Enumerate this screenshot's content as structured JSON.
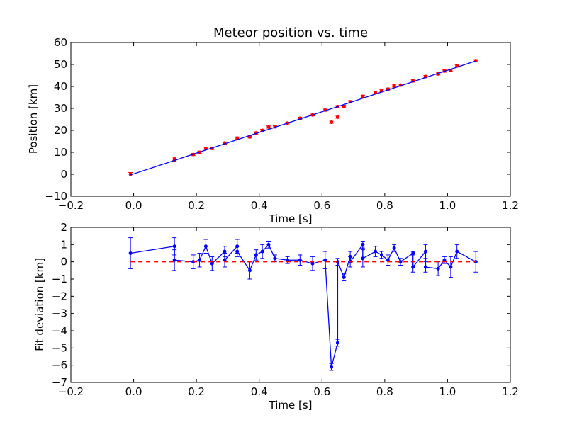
{
  "chart_data": [
    {
      "type": "scatter",
      "title": "Meteor position vs. time",
      "xlabel": "Time [s]",
      "ylabel": "Position [km]",
      "xlim": [
        -0.2,
        1.2
      ],
      "ylim": [
        -10,
        60
      ],
      "xticks": [
        -0.2,
        0.0,
        0.2,
        0.4,
        0.6,
        0.8,
        1.0,
        1.2
      ],
      "xtick_labels": [
        "−0.2",
        "0.0",
        "0.2",
        "0.4",
        "0.6",
        "0.8",
        "1.0",
        "1.2"
      ],
      "yticks": [
        -10,
        0,
        10,
        20,
        30,
        40,
        50,
        60
      ],
      "ytick_labels": [
        "−10",
        "0",
        "10",
        "20",
        "30",
        "40",
        "50",
        "60"
      ],
      "grid": false,
      "series": [
        {
          "kind": "errorbar-points",
          "color": "#ff0000",
          "x": [
            -0.01,
            0.13,
            0.13,
            0.19,
            0.21,
            0.23,
            0.25,
            0.29,
            0.33,
            0.37,
            0.39,
            0.41,
            0.43,
            0.45,
            0.49,
            0.53,
            0.57,
            0.61,
            0.63,
            0.65,
            0.65,
            0.67,
            0.69,
            0.73,
            0.77,
            0.79,
            0.81,
            0.83,
            0.85,
            0.89,
            0.93,
            0.97,
            0.99,
            1.01,
            1.03,
            1.09
          ],
          "y": [
            0.0,
            7.0,
            6.3,
            9.0,
            10.0,
            11.8,
            11.8,
            14.2,
            16.5,
            17.0,
            18.8,
            20.0,
            21.5,
            21.6,
            23.3,
            25.5,
            27.0,
            29.2,
            23.7,
            26.0,
            30.8,
            30.9,
            33.0,
            35.5,
            37.3,
            38.0,
            38.8,
            40.2,
            40.6,
            42.5,
            44.5,
            45.7,
            47.0,
            47.3,
            49.3,
            51.7
          ],
          "yerr": [
            0.8,
            0.8,
            0.6,
            0.5,
            0.5,
            0.5,
            0.5,
            0.5,
            0.5,
            0.5,
            0.5,
            0.5,
            0.5,
            0.5,
            0.4,
            0.5,
            0.4,
            0.5,
            0.5,
            0.5,
            0.5,
            0.5,
            0.5,
            0.5,
            0.5,
            0.5,
            0.5,
            0.5,
            0.5,
            0.5,
            0.5,
            0.5,
            0.5,
            0.5,
            0.5,
            0.5
          ]
        },
        {
          "kind": "fit-line",
          "color": "#0000ff",
          "x": [
            -0.01,
            1.09
          ],
          "y": [
            -0.3,
            51.6
          ]
        }
      ]
    },
    {
      "type": "line",
      "xlabel": "Time [s]",
      "ylabel": "Fit deviation [km]",
      "xlim": [
        -0.2,
        1.2
      ],
      "ylim": [
        -7,
        2
      ],
      "xticks": [
        -0.2,
        0.0,
        0.2,
        0.4,
        0.6,
        0.8,
        1.0,
        1.2
      ],
      "xtick_labels": [
        "−0.2",
        "0.0",
        "0.2",
        "0.4",
        "0.6",
        "0.8",
        "1.0",
        "1.2"
      ],
      "yticks": [
        -7,
        -6,
        -5,
        -4,
        -3,
        -2,
        -1,
        0,
        1,
        2
      ],
      "ytick_labels": [
        "−7",
        "−6",
        "−5",
        "−4",
        "−3",
        "−2",
        "−1",
        "0",
        "1",
        "2"
      ],
      "grid": false,
      "series": [
        {
          "kind": "errorbar-line",
          "color": "#0000ff",
          "x": [
            -0.01,
            0.13,
            0.13,
            0.19,
            0.21,
            0.23,
            0.25,
            0.29,
            0.29,
            0.33,
            0.33,
            0.37,
            0.39,
            0.41,
            0.43,
            0.45,
            0.49,
            0.53,
            0.57,
            0.61,
            0.63,
            0.65,
            0.65,
            0.67,
            0.69,
            0.69,
            0.73,
            0.73,
            0.77,
            0.79,
            0.81,
            0.83,
            0.85,
            0.89,
            0.89,
            0.93,
            0.93,
            0.97,
            0.99,
            1.01,
            1.03,
            1.09
          ],
          "y": [
            0.5,
            0.9,
            0.1,
            0.0,
            0.1,
            0.9,
            -0.1,
            0.6,
            0.1,
            0.9,
            0.6,
            -0.5,
            0.4,
            0.6,
            1.0,
            0.2,
            0.1,
            0.1,
            -0.1,
            0.1,
            -6.1,
            -4.7,
            0.0,
            -0.9,
            0.3,
            0.0,
            1.0,
            0.2,
            0.6,
            0.4,
            0.1,
            0.8,
            0.0,
            0.5,
            -0.3,
            0.6,
            -0.3,
            -0.4,
            0.1,
            -0.3,
            0.6,
            0.0
          ],
          "yerr": [
            0.9,
            0.5,
            0.6,
            0.4,
            0.4,
            0.4,
            0.4,
            0.3,
            0.4,
            0.4,
            0.3,
            0.5,
            0.3,
            0.4,
            0.2,
            0.2,
            0.2,
            0.3,
            0.4,
            0.5,
            0.2,
            0.2,
            0.2,
            0.2,
            0.3,
            0.3,
            0.2,
            0.5,
            0.3,
            0.2,
            0.3,
            0.2,
            0.2,
            0.1,
            0.3,
            0.4,
            0.3,
            0.4,
            0.2,
            0.6,
            0.4,
            0.6
          ]
        },
        {
          "kind": "reference-line",
          "color": "#ff0000",
          "style": "dashed",
          "x": [
            -0.01,
            1.09
          ],
          "y": [
            0,
            0
          ]
        }
      ]
    }
  ]
}
